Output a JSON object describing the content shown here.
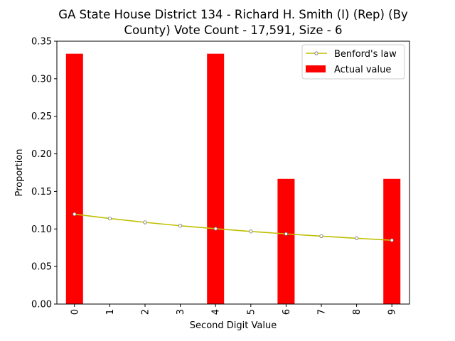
{
  "chart_data": {
    "type": "bar",
    "title": "GA State House District 134 - Richard H. Smith (I) (Rep) (By County) Vote Count - 17,591, Size - 6",
    "title_lines": [
      "GA State House District 134 - Richard H. Smith (I) (Rep) (By",
      "County) Vote Count - 17,591, Size - 6"
    ],
    "xlabel": "Second Digit Value",
    "ylabel": "Proportion",
    "categories": [
      "0",
      "1",
      "2",
      "3",
      "4",
      "5",
      "6",
      "7",
      "8",
      "9"
    ],
    "ylim": [
      0,
      0.35
    ],
    "yticks": [
      "0.00",
      "0.05",
      "0.10",
      "0.15",
      "0.20",
      "0.25",
      "0.30",
      "0.35"
    ],
    "grid": false,
    "legend_position": "top-right",
    "series": [
      {
        "name": "Benford's law",
        "kind": "line",
        "color": "#bfbf00",
        "values": [
          0.1197,
          0.1139,
          0.1088,
          0.1043,
          0.1003,
          0.0967,
          0.0934,
          0.0904,
          0.0876,
          0.085
        ]
      },
      {
        "name": "Actual value",
        "kind": "bar",
        "color": "#ff0000",
        "values": [
          0.3333,
          0,
          0,
          0,
          0.3333,
          0,
          0.1667,
          0,
          0,
          0.1667
        ]
      }
    ]
  }
}
